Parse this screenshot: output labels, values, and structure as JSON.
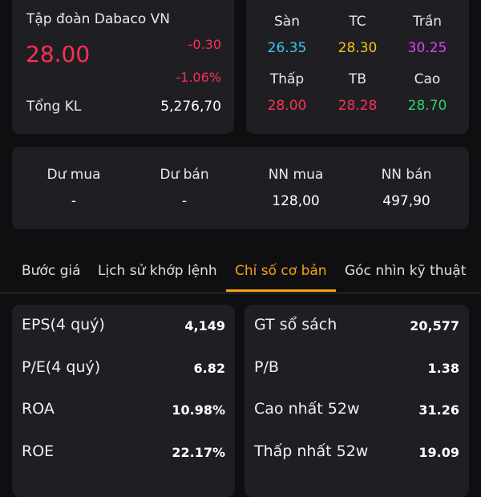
{
  "stock": {
    "company_name": "Tập đoàn Dabaco VN",
    "price": "28.00",
    "change": "-0.30",
    "change_pct": "-1.06%",
    "volume_label": "Tổng KL",
    "volume": "5,276,70"
  },
  "price_levels": [
    {
      "label": "Sàn",
      "value": "26.35",
      "color": "#39c8f0"
    },
    {
      "label": "TC",
      "value": "28.30",
      "color": "#f4c21f"
    },
    {
      "label": "Trần",
      "value": "30.25",
      "color": "#e040fb"
    },
    {
      "label": "Thấp",
      "value": "28.00",
      "color": "#ff2f55"
    },
    {
      "label": "TB",
      "value": "28.28",
      "color": "#ff2f55"
    },
    {
      "label": "Cao",
      "value": "28.70",
      "color": "#2fd36b"
    }
  ],
  "order_flow": [
    {
      "label": "Dư mua",
      "value": "-"
    },
    {
      "label": "Dư bán",
      "value": "-"
    },
    {
      "label": "NN mua",
      "value": "128,00"
    },
    {
      "label": "NN bán",
      "value": "497,90"
    }
  ],
  "tabs": [
    {
      "label": "Bước giá"
    },
    {
      "label": "Lịch sử khớp lệnh"
    },
    {
      "label": "Chỉ số cơ bản"
    },
    {
      "label": "Góc nhìn kỹ thuật"
    }
  ],
  "metrics_left": [
    {
      "label": "EPS(4 quý)",
      "value": "4,149"
    },
    {
      "label": "P/E(4 quý)",
      "value": "6.82"
    },
    {
      "label": "ROA",
      "value": "10.98%"
    },
    {
      "label": "ROE",
      "value": "22.17%"
    }
  ],
  "metrics_right": [
    {
      "label": "GT sổ sách",
      "value": "20,577"
    },
    {
      "label": "P/B",
      "value": "1.38"
    },
    {
      "label": "Cao nhất 52w",
      "value": "31.26"
    },
    {
      "label": "Thấp nhất 52w",
      "value": "19.09"
    }
  ],
  "colors": {
    "background": "#0f0f11",
    "card": "#1f1f23",
    "down": "#ff2f55",
    "accent": "#f6a214"
  }
}
